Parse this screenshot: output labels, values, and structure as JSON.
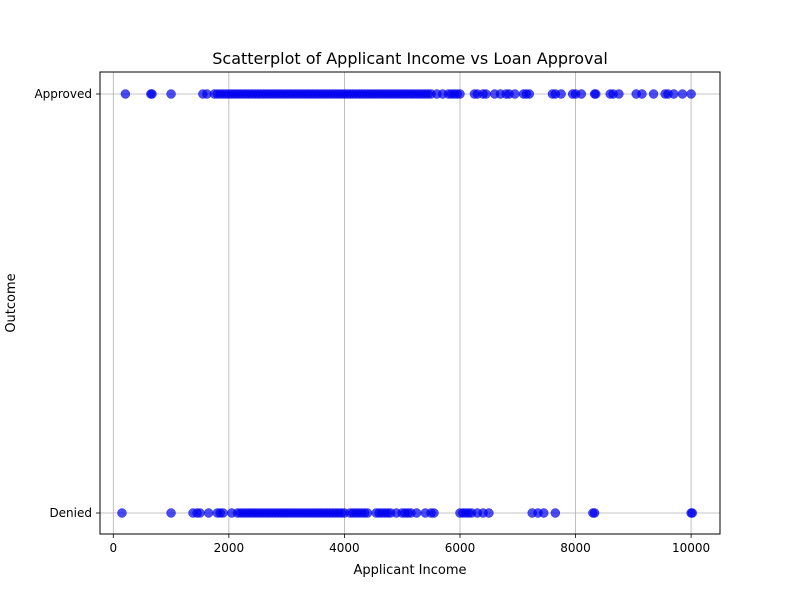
{
  "chart_data": {
    "type": "scatter",
    "title": "Scatterplot of Applicant Income vs Loan Approval",
    "xlabel": "Applicant Income",
    "ylabel": "Outcome",
    "xlim": [
      -230,
      10500
    ],
    "x_ticks": [
      0,
      2000,
      4000,
      6000,
      8000,
      10000
    ],
    "categories": [
      "Denied",
      "Approved"
    ],
    "grid": true,
    "marker_color": "#0000ee",
    "series": [
      {
        "category": "Approved",
        "x": [
          210,
          650,
          670,
          1000,
          1550,
          1620,
          1750,
          1800,
          1850,
          1900,
          1950,
          2000,
          2050,
          2100,
          2150,
          2200,
          2250,
          2300,
          2350,
          2400,
          2450,
          2500,
          2550,
          2600,
          2650,
          2700,
          2750,
          2800,
          2850,
          2900,
          2950,
          3000,
          3050,
          3100,
          3150,
          3200,
          3250,
          3300,
          3350,
          3400,
          3450,
          3500,
          3550,
          3600,
          3650,
          3700,
          3750,
          3800,
          3850,
          3900,
          3950,
          4000,
          4050,
          4100,
          4150,
          4200,
          4250,
          4300,
          4350,
          4400,
          4450,
          4500,
          4550,
          4600,
          4650,
          4700,
          4750,
          4800,
          4850,
          4900,
          4950,
          5000,
          5050,
          5100,
          5150,
          5200,
          5250,
          5300,
          5350,
          5400,
          5450,
          5500,
          5600,
          5700,
          5800,
          5850,
          5900,
          5950,
          6000,
          6250,
          6300,
          6400,
          6450,
          6600,
          6700,
          6800,
          6850,
          6950,
          7100,
          7150,
          7200,
          7600,
          7650,
          7750,
          7950,
          8000,
          8100,
          8330,
          8350,
          8600,
          8650,
          8750,
          9050,
          9150,
          9350,
          9550,
          9600,
          9700,
          9850,
          10000
        ]
      },
      {
        "category": "Denied",
        "x": [
          150,
          1000,
          1380,
          1450,
          1500,
          1650,
          1800,
          1850,
          1900,
          2050,
          2150,
          2200,
          2250,
          2300,
          2350,
          2400,
          2450,
          2500,
          2550,
          2600,
          2650,
          2700,
          2750,
          2800,
          2850,
          2900,
          2950,
          3000,
          3050,
          3100,
          3150,
          3200,
          3250,
          3300,
          3350,
          3400,
          3450,
          3500,
          3550,
          3600,
          3650,
          3700,
          3750,
          3800,
          3850,
          3900,
          3950,
          4000,
          4100,
          4150,
          4200,
          4250,
          4300,
          4350,
          4400,
          4550,
          4600,
          4650,
          4700,
          4750,
          4800,
          4900,
          5000,
          5050,
          5100,
          5150,
          5250,
          5400,
          5500,
          5550,
          6000,
          6050,
          6100,
          6150,
          6200,
          6300,
          6400,
          6500,
          7250,
          7350,
          7450,
          7650,
          8300,
          8330,
          10000,
          10020
        ]
      }
    ]
  }
}
